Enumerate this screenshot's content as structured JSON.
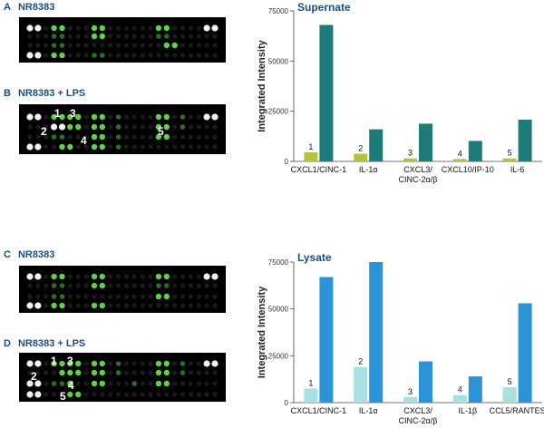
{
  "panels": [
    {
      "letter": "A",
      "title": "NR8383"
    },
    {
      "letter": "B",
      "title": "NR8383 + LPS"
    },
    {
      "letter": "C",
      "title": "NR8383"
    },
    {
      "letter": "D",
      "title": "NR8383 + LPS"
    }
  ],
  "array_markers": {
    "B": [
      "1",
      "2",
      "3",
      "4",
      "5"
    ],
    "D": [
      "1",
      "2",
      "3",
      "4",
      "5"
    ]
  },
  "colors": {
    "panel_label": "#1f4e79",
    "array_bg": "#000000",
    "dot_green": "#5fd14a",
    "dot_white": "#f2f2f2",
    "supernate_ctrl": "#b5c23a",
    "supernate_lps": "#1f7a7a",
    "lysate_ctrl": "#a8dfe0",
    "lysate_lps": "#2a94d6"
  },
  "chart_data": [
    {
      "type": "bar",
      "title": "Supernate",
      "ylabel": "Integrated Intensity",
      "ylim": [
        0,
        75000
      ],
      "yticks": [
        "0",
        "25000",
        "50000",
        "75000"
      ],
      "categories": [
        {
          "lines": [
            "CXCL1/CINC-1"
          ]
        },
        {
          "lines": [
            "IL-1α"
          ]
        },
        {
          "lines": [
            "CXCL3/",
            "CINC-2α/β"
          ]
        },
        {
          "lines": [
            "CXCL10/IP-10"
          ]
        },
        {
          "lines": [
            "IL-6"
          ]
        }
      ],
      "bar_labels": [
        "1",
        "2",
        "3",
        "4",
        "5"
      ],
      "series": [
        {
          "values": [
            4500,
            3800,
            1500,
            1200,
            1500
          ]
        },
        {
          "values": [
            68000,
            16000,
            18800,
            10200,
            20800
          ]
        }
      ]
    },
    {
      "type": "bar",
      "title": "Lysate",
      "ylabel": "Integrated Intensity",
      "ylim": [
        0,
        75000
      ],
      "yticks": [
        "0",
        "25000",
        "50000",
        "75000"
      ],
      "categories": [
        {
          "lines": [
            "CXCL1/CINC-1"
          ]
        },
        {
          "lines": [
            "IL-1α"
          ]
        },
        {
          "lines": [
            "CXCL3/",
            "CINC-2α/β"
          ]
        },
        {
          "lines": [
            "IL-1β"
          ]
        },
        {
          "lines": [
            "CCL5/RANTES"
          ]
        }
      ],
      "bar_labels": [
        "1",
        "2",
        "3",
        "4",
        "5"
      ],
      "series": [
        {
          "values": [
            7500,
            19000,
            3000,
            4000,
            8200
          ]
        },
        {
          "values": [
            67000,
            75000,
            22000,
            14000,
            53000
          ]
        }
      ]
    }
  ]
}
